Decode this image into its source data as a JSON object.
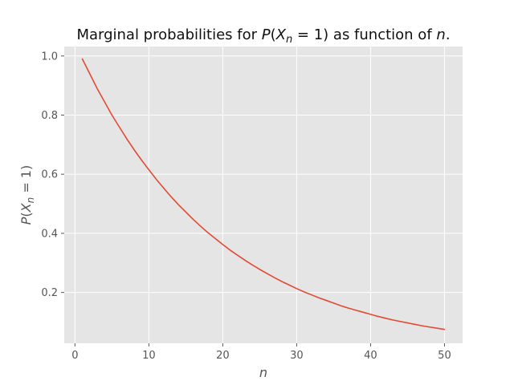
{
  "chart_data": {
    "type": "line",
    "title_parts": {
      "prefix": "Marginal probabilities for ",
      "p": "P",
      "open": "(",
      "x": "X",
      "sub": "n",
      "eq": " = 1)",
      "mid": " as function of ",
      "n": "n",
      "end": "."
    },
    "xlabel": "n",
    "ylabel_parts": {
      "p": "P",
      "open": "(",
      "x": "X",
      "sub": "n",
      "eq": " = 1)"
    },
    "xlim": [
      -1.45,
      52.45
    ],
    "ylim": [
      0.028,
      1.032
    ],
    "xticks": [
      0,
      10,
      20,
      30,
      40,
      50
    ],
    "xtick_labels": [
      "0",
      "10",
      "20",
      "30",
      "40",
      "50"
    ],
    "yticks": [
      0.2,
      0.4,
      0.6,
      0.8,
      1.0
    ],
    "ytick_labels": [
      "0.2",
      "0.4",
      "0.6",
      "0.8",
      "1.0"
    ],
    "grid": true,
    "series": [
      {
        "color": "#E24A33",
        "x": [
          1,
          2,
          3,
          4,
          5,
          6,
          7,
          8,
          9,
          10,
          11,
          12,
          13,
          14,
          15,
          16,
          17,
          18,
          19,
          20,
          21,
          22,
          23,
          24,
          25,
          26,
          27,
          28,
          29,
          30,
          31,
          32,
          33,
          34,
          35,
          36,
          37,
          38,
          39,
          40,
          41,
          42,
          43,
          44,
          45,
          46,
          47,
          48,
          49,
          50
        ],
        "y": [
          0.99,
          0.94,
          0.89,
          0.845,
          0.8,
          0.76,
          0.72,
          0.683,
          0.648,
          0.615,
          0.583,
          0.553,
          0.524,
          0.497,
          0.472,
          0.447,
          0.424,
          0.402,
          0.382,
          0.362,
          0.343,
          0.326,
          0.309,
          0.293,
          0.278,
          0.264,
          0.25,
          0.237,
          0.225,
          0.213,
          0.202,
          0.192,
          0.182,
          0.173,
          0.164,
          0.155,
          0.147,
          0.14,
          0.133,
          0.126,
          0.119,
          0.113,
          0.107,
          0.102,
          0.097,
          0.092,
          0.087,
          0.083,
          0.079,
          0.075
        ]
      }
    ]
  },
  "style": {
    "axes_facecolor": "#E5E5E5",
    "grid_color": "#FFFFFF",
    "tick_color": "#555555"
  }
}
